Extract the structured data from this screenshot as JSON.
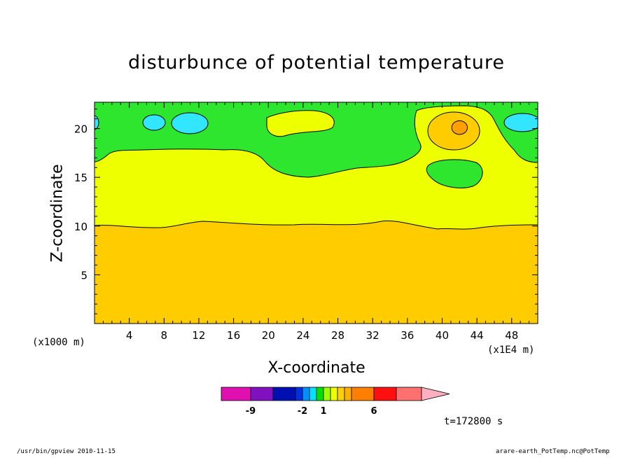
{
  "chart_data": {
    "type": "heatmap",
    "title": "disturbunce of potential temperature",
    "xlabel": "X-coordinate",
    "ylabel": "Z-coordinate",
    "x_unit_left": "(x1000 m)",
    "x_unit_right": "(x1E4 m)",
    "xlim": [
      0,
      51
    ],
    "ylim": [
      0,
      22.7
    ],
    "x_ticks": [
      4,
      8,
      12,
      16,
      20,
      24,
      28,
      32,
      36,
      40,
      44,
      48
    ],
    "x_tick_labels": [
      "4",
      "8",
      "12",
      "16",
      "20",
      "24",
      "28",
      "32",
      "36",
      "40",
      "44",
      "48"
    ],
    "y_ticks": [
      5,
      10,
      15,
      20
    ],
    "y_tick_labels": [
      "5",
      "10",
      "15",
      "20"
    ],
    "grid": false,
    "colors": {
      "cyan": "#33e6ff",
      "green": "#2ee62e",
      "yellow": "#eeff00",
      "gold": "#ffcc00",
      "orange": "#ffa000",
      "outline": "#000000"
    },
    "regions": [
      {
        "value_band": "4 to 6",
        "color": "orange",
        "description": "peak",
        "center_x": 42,
        "center_z": 20.1,
        "radius_x": 0.9,
        "radius_z": 0.7
      },
      {
        "value_band": "1 to 2",
        "color": "gold",
        "description": "below z about 10"
      },
      {
        "value_band": "0 to 1",
        "color": "yellow",
        "description": "middle layer z about 10 to 17"
      },
      {
        "value_band": "-1 to 0",
        "color": "green",
        "description": "upper layer z above 17"
      },
      {
        "value_band": "-2 to -1",
        "color": "cyan",
        "description": "small patches near z 20"
      }
    ],
    "colorbar": {
      "levels": [
        "-9",
        "-2",
        "1",
        "6"
      ],
      "segments": [
        "#e010b0",
        "#8010c0",
        "#0010b0",
        "#0030e0",
        "#0090ff",
        "#00e0ff",
        "#00e000",
        "#a0ff00",
        "#eeff00",
        "#ffd000",
        "#ffb000",
        "#ff8000",
        "#ff1010",
        "#ff7070",
        "#ffb0c0"
      ]
    },
    "time_label": "t=172800 s"
  },
  "footer": {
    "left": "/usr/bin/gpview   2010-11-15",
    "right": "arare-earth_PotTemp.nc@PotTemp"
  }
}
